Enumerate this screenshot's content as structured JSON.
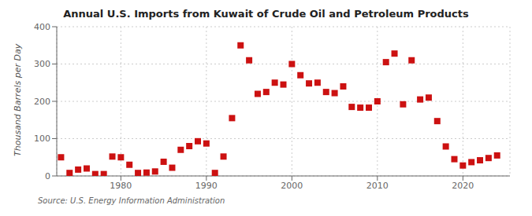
{
  "chart_data": {
    "type": "scatter",
    "title": "Annual U.S. Imports from Kuwait of Crude Oil and Petroleum Products",
    "ylabel": "Thousand Barrels per Day",
    "annotation": "Source: U.S. Energy Information Administration",
    "color": "#cc1111",
    "marker": "square",
    "grid": true,
    "xlim": [
      1972.5,
      2025.5
    ],
    "ylim": [
      0,
      400
    ],
    "xticks": [
      1980,
      1990,
      2000,
      2010,
      2020
    ],
    "yticks": [
      0,
      100,
      200,
      300,
      400
    ],
    "x": [
      1973,
      1974,
      1975,
      1976,
      1977,
      1978,
      1979,
      1980,
      1981,
      1982,
      1983,
      1984,
      1985,
      1986,
      1987,
      1988,
      1989,
      1990,
      1991,
      1992,
      1993,
      1994,
      1995,
      1996,
      1997,
      1998,
      1999,
      2000,
      2001,
      2002,
      2003,
      2004,
      2005,
      2006,
      2007,
      2008,
      2009,
      2010,
      2011,
      2012,
      2013,
      2014,
      2015,
      2016,
      2017,
      2018,
      2019,
      2020,
      2021,
      2022,
      2023,
      2024
    ],
    "values": [
      50,
      8,
      17,
      20,
      5,
      5,
      52,
      50,
      30,
      8,
      9,
      12,
      38,
      22,
      70,
      80,
      93,
      87,
      8,
      52,
      155,
      350,
      310,
      220,
      225,
      250,
      245,
      300,
      270,
      248,
      250,
      225,
      222,
      240,
      185,
      183,
      183,
      200,
      305,
      328,
      192,
      310,
      205,
      210,
      147,
      79,
      45,
      28,
      37,
      42,
      48,
      55
    ]
  }
}
